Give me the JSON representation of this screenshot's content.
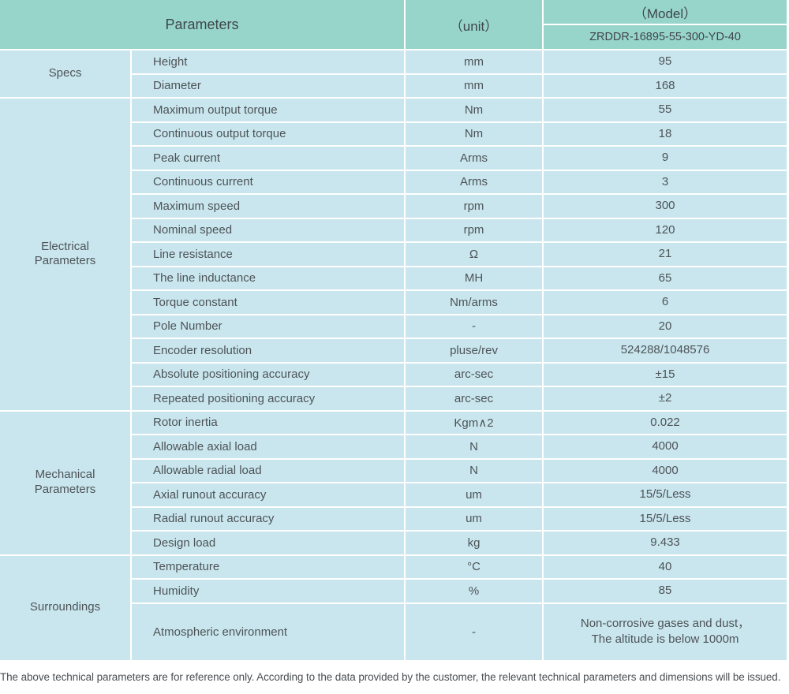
{
  "colors": {
    "header_bg": "#97d5cb",
    "body_bg": "#c9e6ee",
    "header_text": "#3f4649",
    "body_text": "#4d5357",
    "note_text": "#4a4f53",
    "page_bg": "#ffffff"
  },
  "table": {
    "header": {
      "parameters_label": "Parameters",
      "unit_label": "（unit）",
      "model_label": "（Model）",
      "model_value": "ZRDDR-16895-55-300-YD-40"
    },
    "sections": [
      {
        "category": "Specs",
        "rows": [
          {
            "name": "Height",
            "unit": "mm",
            "value": "95"
          },
          {
            "name": "Diameter",
            "unit": "mm",
            "value": "168"
          }
        ]
      },
      {
        "category": "Electrical\nParameters",
        "rows": [
          {
            "name": "Maximum output torque",
            "unit": "Nm",
            "value": "55"
          },
          {
            "name": "Continuous output torque",
            "unit": "Nm",
            "value": "18"
          },
          {
            "name": "Peak current",
            "unit": "Arms",
            "value": "9"
          },
          {
            "name": "Continuous current",
            "unit": "Arms",
            "value": "3"
          },
          {
            "name": "Maximum speed",
            "unit": "rpm",
            "value": "300"
          },
          {
            "name": "Nominal speed",
            "unit": "rpm",
            "value": "120"
          },
          {
            "name": "Line resistance",
            "unit": "Ω",
            "value": "21"
          },
          {
            "name": "The line inductance",
            "unit": "MH",
            "value": "65"
          },
          {
            "name": "Torque constant",
            "unit": "Nm/arms",
            "value": "6"
          },
          {
            "name": "Pole Number",
            "unit": "-",
            "value": "20"
          },
          {
            "name": "Encoder resolution",
            "unit": "pluse/rev",
            "value": "524288/1048576"
          },
          {
            "name": "Absolute positioning accuracy",
            "unit": "arc-sec",
            "value": "±15"
          },
          {
            "name": "Repeated positioning accuracy",
            "unit": "arc-sec",
            "value": "±2"
          }
        ]
      },
      {
        "category": "Mechanical\nParameters",
        "rows": [
          {
            "name": "Rotor inertia",
            "unit": "Kgm∧2",
            "value": "0.022"
          },
          {
            "name": "Allowable axial load",
            "unit": "N",
            "value": "4000"
          },
          {
            "name": "Allowable radial load",
            "unit": "N",
            "value": "4000"
          },
          {
            "name": "Axial runout accuracy",
            "unit": "um",
            "value": "15/5/Less"
          },
          {
            "name": "Radial runout accuracy",
            "unit": "um",
            "value": "15/5/Less"
          },
          {
            "name": "Design load",
            "unit": "kg",
            "value": "9.433"
          }
        ]
      },
      {
        "category": "Surroundings",
        "rows": [
          {
            "name": "Temperature",
            "unit": "°C",
            "value": "40"
          },
          {
            "name": "Humidity",
            "unit": "%",
            "value": "85"
          },
          {
            "name": "Atmospheric environment",
            "unit": "-",
            "value": "Non-corrosive gases and dust，\nThe altitude is below 1000m"
          }
        ]
      }
    ]
  },
  "footer": {
    "note": "The above technical parameters are for reference only. According to the data provided by the customer, the relevant technical parameters and dimensions will be issued."
  }
}
